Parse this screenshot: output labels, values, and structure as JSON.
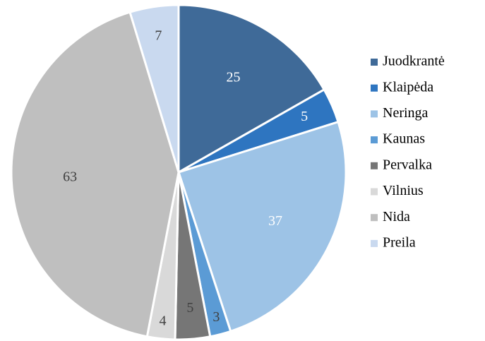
{
  "chart_data": {
    "type": "pie",
    "categories": [
      "Juodkrantė",
      "Klaipėda",
      "Neringa",
      "Kaunas",
      "Pervalka",
      "Vilnius",
      "Nida",
      "Preila"
    ],
    "values": [
      25,
      5,
      37,
      3,
      5,
      4,
      63,
      7
    ],
    "colors": [
      "#3f6a98",
      "#2e75c0",
      "#9dc3e6",
      "#5b9bd5",
      "#767676",
      "#d9d9d9",
      "#bfbfbf",
      "#c9d9ef"
    ],
    "label_colors": [
      "#ffffff",
      "#ffffff",
      "#ffffff",
      "#404040",
      "#404040",
      "#404040",
      "#404040",
      "#404040"
    ],
    "legend": "right"
  }
}
